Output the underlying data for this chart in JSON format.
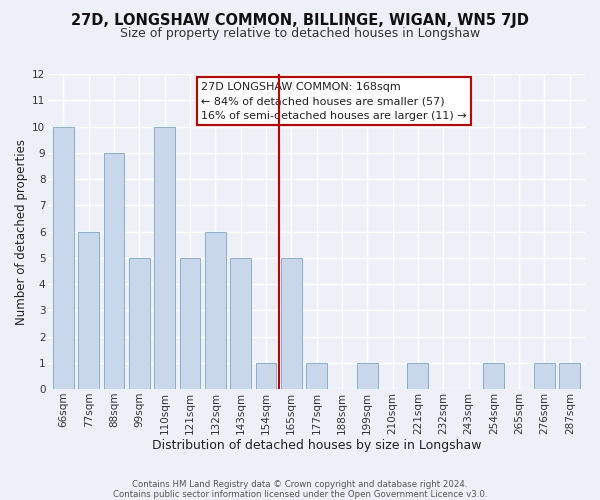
{
  "title": "27D, LONGSHAW COMMON, BILLINGE, WIGAN, WN5 7JD",
  "subtitle": "Size of property relative to detached houses in Longshaw",
  "xlabel": "Distribution of detached houses by size in Longshaw",
  "ylabel": "Number of detached properties",
  "bar_labels": [
    "66sqm",
    "77sqm",
    "88sqm",
    "99sqm",
    "110sqm",
    "121sqm",
    "132sqm",
    "143sqm",
    "154sqm",
    "165sqm",
    "177sqm",
    "188sqm",
    "199sqm",
    "210sqm",
    "221sqm",
    "232sqm",
    "243sqm",
    "254sqm",
    "265sqm",
    "276sqm",
    "287sqm"
  ],
  "bar_heights": [
    10,
    6,
    9,
    5,
    10,
    5,
    6,
    5,
    1,
    5,
    1,
    0,
    1,
    0,
    1,
    0,
    0,
    1,
    0,
    1,
    1
  ],
  "bar_color": "#c8d8ea",
  "bar_edge_color": "#8ab0cc",
  "vline_color": "#cc0000",
  "vline_index": 9,
  "annotation_line1": "27D LONGSHAW COMMON: 168sqm",
  "annotation_line2": "← 84% of detached houses are smaller (57)",
  "annotation_line3": "16% of semi-detached houses are larger (11) →",
  "annotation_box_color": "#ffffff",
  "annotation_box_edge_color": "#cc0000",
  "ylim": [
    0,
    12
  ],
  "yticks": [
    0,
    1,
    2,
    3,
    4,
    5,
    6,
    7,
    8,
    9,
    10,
    11,
    12
  ],
  "footer_line1": "Contains HM Land Registry data © Crown copyright and database right 2024.",
  "footer_line2": "Contains public sector information licensed under the Open Government Licence v3.0.",
  "bg_color": "#edf1f7",
  "grid_color": "#ffffff",
  "title_fontsize": 10.5,
  "subtitle_fontsize": 9,
  "axis_label_fontsize": 8.5,
  "tick_fontsize": 7.5,
  "annotation_fontsize": 8,
  "footer_fontsize": 6.2
}
